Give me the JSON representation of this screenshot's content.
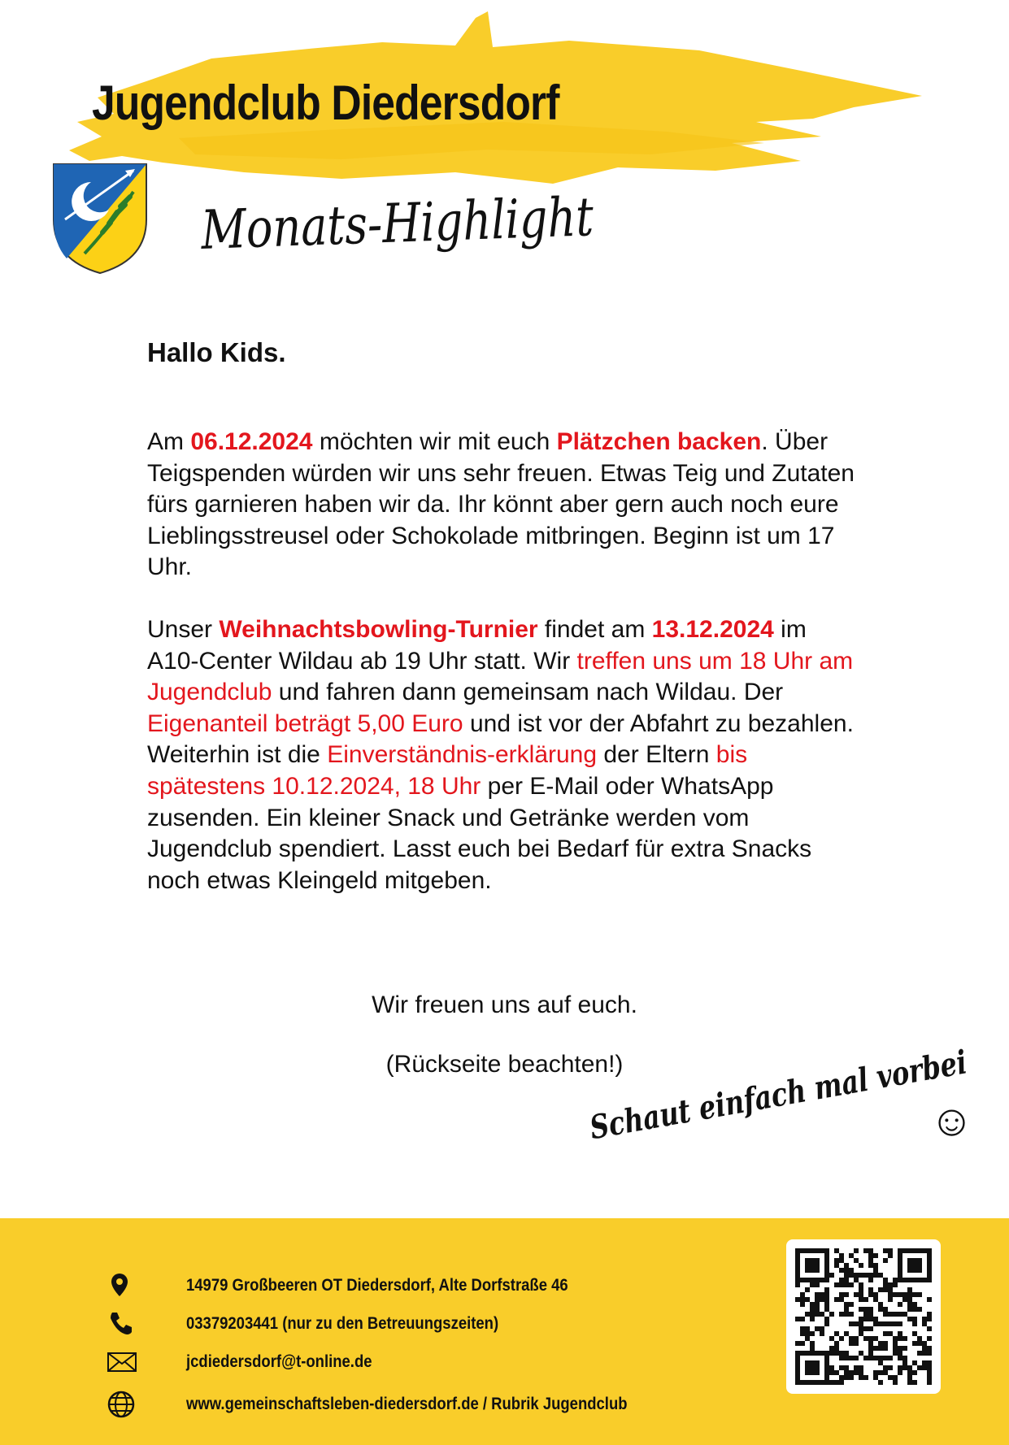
{
  "header": {
    "title": "Jugendclub Diedersdorf",
    "subtitle": "Monats-Highlight"
  },
  "body": {
    "greeting": "Hallo Kids.",
    "paragraphs": [
      {
        "segments": [
          {
            "text": "Am "
          },
          {
            "text": "06.12.2024",
            "color": "#e3161d",
            "bold": true
          },
          {
            "text": " möchten wir mit euch "
          },
          {
            "text": "Plätzchen backen",
            "color": "#e3161d",
            "bold": true
          },
          {
            "text": ". Über Teigspenden würden wir uns sehr freuen. Etwas Teig und Zutaten fürs garnieren haben wir da. Ihr könnt aber gern auch noch eure Lieblingsstreusel oder Schokolade mitbringen. Beginn ist um 17 Uhr."
          }
        ]
      },
      {
        "segments": [
          {
            "text": "Unser "
          },
          {
            "text": "Weihnachtsbowling-Turnier",
            "color": "#e3161d",
            "bold": true
          },
          {
            "text": " findet am "
          },
          {
            "text": "13.12.2024",
            "color": "#e3161d",
            "bold": true
          },
          {
            "text": " im A10-Center Wildau ab 19 Uhr statt. Wir "
          },
          {
            "text": "treffen uns um 18 Uhr am Jugendclub",
            "color": "#e3161d"
          },
          {
            "text": " und fahren dann gemeinsam nach Wildau. Der "
          },
          {
            "text": "Eigenanteil beträgt 5,00 Euro",
            "color": "#e3161d"
          },
          {
            "text": " und ist vor der Abfahrt zu bezahlen. Weiterhin ist die "
          },
          {
            "text": "Einverständnis-erklärung",
            "color": "#e3161d"
          },
          {
            "text": " der Eltern "
          },
          {
            "text": "bis spätestens 10.12.2024, 18 Uhr",
            "color": "#e3161d"
          },
          {
            "text": " per E-Mail oder WhatsApp zusenden. Ein kleiner Snack und Getränke werden vom Jugendclub spendiert. Lasst euch bei Bedarf für extra Snacks noch etwas Kleingeld mitgeben."
          }
        ]
      }
    ],
    "closing": "Wir freuen uns auf euch.",
    "note": "(Rückseite beachten!)",
    "slogan": "Schaut einfach mal vorbei",
    "emoticon": "☺"
  },
  "footer": {
    "contacts": [
      {
        "icon": "location",
        "text": "14979 Großbeeren OT Diedersdorf, Alte Dorfstraße 46"
      },
      {
        "icon": "phone",
        "text": "03379203441 (nur zu den Betreuungszeiten)"
      },
      {
        "icon": "mail",
        "text": "jcdiedersdorf@t-online.de"
      },
      {
        "icon": "web",
        "text": "www.gemeinschaftsleben-diedersdorf.de / Rubrik Jugendclub"
      }
    ]
  }
}
